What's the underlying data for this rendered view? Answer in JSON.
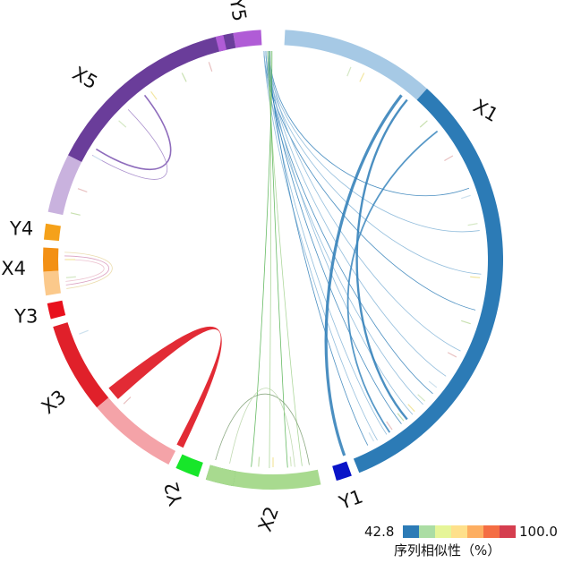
{
  "segments": [
    {
      "id": "Y5",
      "label": "Y5",
      "color": "#b05cd6",
      "light": "#d9a8ee"
    },
    {
      "id": "X1",
      "label": "X1",
      "color": "#2c7bb6",
      "light": "#a6c9e5"
    },
    {
      "id": "Y1",
      "label": "Y1",
      "color": "#0a14c8",
      "light": "#0a14c8"
    },
    {
      "id": "X2",
      "label": "X2",
      "color": "#35a02f",
      "light": "#a8da8f"
    },
    {
      "id": "Y2",
      "label": "Y2",
      "color": "#17e62a",
      "light": "#17e62a"
    },
    {
      "id": "X3",
      "label": "X3",
      "color": "#e0202a",
      "light": "#f4a3a8"
    },
    {
      "id": "Y3",
      "label": "Y3",
      "color": "#e8101c",
      "light": "#e8101c"
    },
    {
      "id": "X4",
      "label": "X4",
      "color": "#f39014",
      "light": "#fbc98b"
    },
    {
      "id": "Y4",
      "label": "Y4",
      "color": "#f5a11a",
      "light": "#f5a11a"
    },
    {
      "id": "X5",
      "label": "X5",
      "color": "#6a3d9a",
      "light": "#c9b2de"
    }
  ],
  "legend": {
    "min": "42.8",
    "max": "100.0",
    "title": "序列相似性（%）",
    "colors": [
      "#2c7bb6",
      "#abdda4",
      "#e6f598",
      "#fee08b",
      "#fdae61",
      "#f46d43",
      "#d53e4f"
    ]
  }
}
